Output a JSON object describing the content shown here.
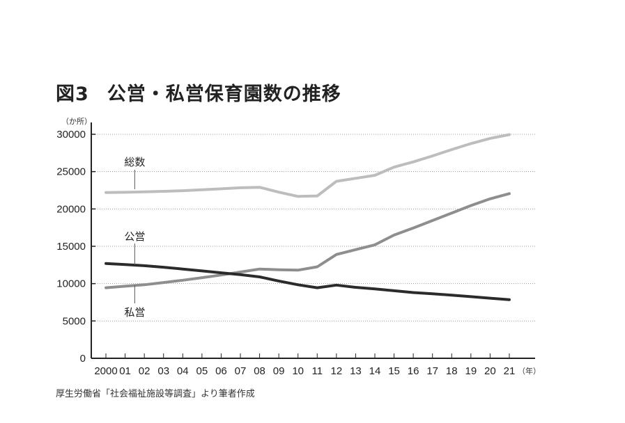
{
  "title": {
    "figure": "図3",
    "text": "公営・私営保育園数の推移"
  },
  "y_unit": "（か所）",
  "x_unit": "（年）",
  "source": "厚生労働省「社会福祉施設等調査」より筆者作成",
  "series_labels": {
    "total": "総数",
    "public": "公営",
    "private": "私営"
  },
  "colors": {
    "total": "#bdbdbd",
    "public": "#2b2b2b",
    "private": "#8e8e8e",
    "grid": "#9a9a9a",
    "axis": "#222222"
  },
  "chart_data": {
    "type": "line",
    "title": "図3 公営・私営保育園数の推移",
    "xlabel": "（年）",
    "ylabel": "（か所）",
    "ylim": [
      0,
      30000
    ],
    "yticks": [
      0,
      5000,
      10000,
      15000,
      20000,
      25000,
      30000
    ],
    "grid": "horizontal dotted",
    "legend": "inline labels with leader lines",
    "categories": [
      "2000",
      "01",
      "02",
      "03",
      "04",
      "05",
      "06",
      "07",
      "08",
      "09",
      "10",
      "11",
      "12",
      "13",
      "14",
      "15",
      "16",
      "17",
      "18",
      "19",
      "20",
      "21"
    ],
    "series": [
      {
        "name": "総数",
        "values": [
          22200,
          22230,
          22290,
          22360,
          22440,
          22570,
          22700,
          22840,
          22900,
          22250,
          21680,
          21750,
          23700,
          24100,
          24500,
          25600,
          26300,
          27100,
          27950,
          28750,
          29450,
          29950
        ]
      },
      {
        "name": "公営",
        "values": [
          12700,
          12550,
          12400,
          12200,
          11950,
          11700,
          11450,
          11200,
          10900,
          10350,
          9850,
          9450,
          9800,
          9500,
          9300,
          9050,
          8800,
          8650,
          8450,
          8250,
          8050,
          7850
        ]
      },
      {
        "name": "私営",
        "values": [
          9450,
          9650,
          9850,
          10150,
          10450,
          10800,
          11150,
          11550,
          11950,
          11850,
          11800,
          12250,
          13900,
          14550,
          15200,
          16500,
          17450,
          18450,
          19450,
          20450,
          21350,
          22050
        ]
      }
    ]
  }
}
